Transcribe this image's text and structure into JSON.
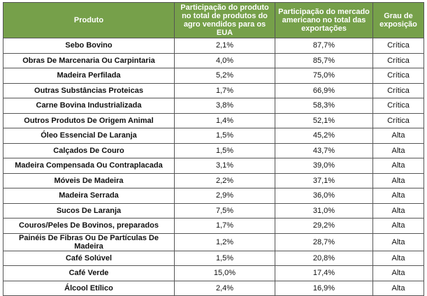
{
  "headers": [
    "Produto",
    "Participação do produto no total de produtos do agro vendidos para os EUA",
    "Participação do mercado americano no total das exportações",
    "Grau de exposição"
  ],
  "rows": [
    [
      "Sebo Bovino",
      "2,1%",
      "87,7%",
      "Crítica"
    ],
    [
      "Obras De Marcenaria Ou Carpintaria",
      "4,0%",
      "85,7%",
      "Crítica"
    ],
    [
      "Madeira Perfilada",
      "5,2%",
      "75,0%",
      "Crítica"
    ],
    [
      "Outras Substâncias Proteicas",
      "1,7%",
      "66,9%",
      "Crítica"
    ],
    [
      "Carne Bovina Industrializada",
      "3,8%",
      "58,3%",
      "Crítica"
    ],
    [
      "Outros Produtos De Origem Animal",
      "1,4%",
      "52,1%",
      "Crítica"
    ],
    [
      "Óleo Essencial De Laranja",
      "1,5%",
      "45,2%",
      "Alta"
    ],
    [
      "Calçados De Couro",
      "1,5%",
      "43,7%",
      "Alta"
    ],
    [
      "Madeira Compensada Ou Contraplacada",
      "3,1%",
      "39,0%",
      "Alta"
    ],
    [
      "Móveis De Madeira",
      "2,2%",
      "37,1%",
      "Alta"
    ],
    [
      "Madeira Serrada",
      "2,9%",
      "36,0%",
      "Alta"
    ],
    [
      "Sucos De Laranja",
      "7,5%",
      "31,0%",
      "Alta"
    ],
    [
      "Couros/Peles De Bovinos, preparados",
      "1,7%",
      "29,2%",
      "Alta"
    ],
    [
      "Painéis De Fibras Ou De Partículas De Madeira",
      "1,2%",
      "28,7%",
      "Alta"
    ],
    [
      "Café Solúvel",
      "1,5%",
      "20,8%",
      "Alta"
    ],
    [
      "Café Verde",
      "15,0%",
      "17,4%",
      "Alta"
    ],
    [
      "Álcool Etílico",
      "2,4%",
      "16,9%",
      "Alta"
    ]
  ],
  "header_color": "#76a04a"
}
